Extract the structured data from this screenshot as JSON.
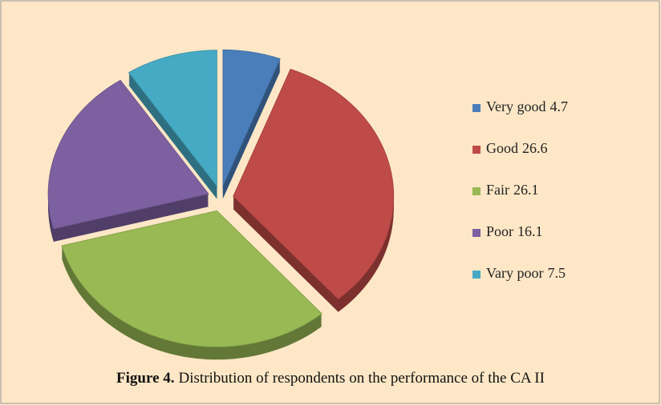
{
  "chart_data": {
    "type": "pie",
    "categories": [
      "Very good",
      "Good",
      "Fair",
      "Poor",
      "Vary poor"
    ],
    "values": [
      4.7,
      26.6,
      26.1,
      16.1,
      7.5
    ],
    "colors": [
      "#4a7ebb",
      "#be4b48",
      "#98b954",
      "#7d60a0",
      "#46aac5"
    ],
    "legend": "right",
    "caption_label": "Figure 4.",
    "caption_text": "Distribution of respondents on the performance of the CA II"
  }
}
